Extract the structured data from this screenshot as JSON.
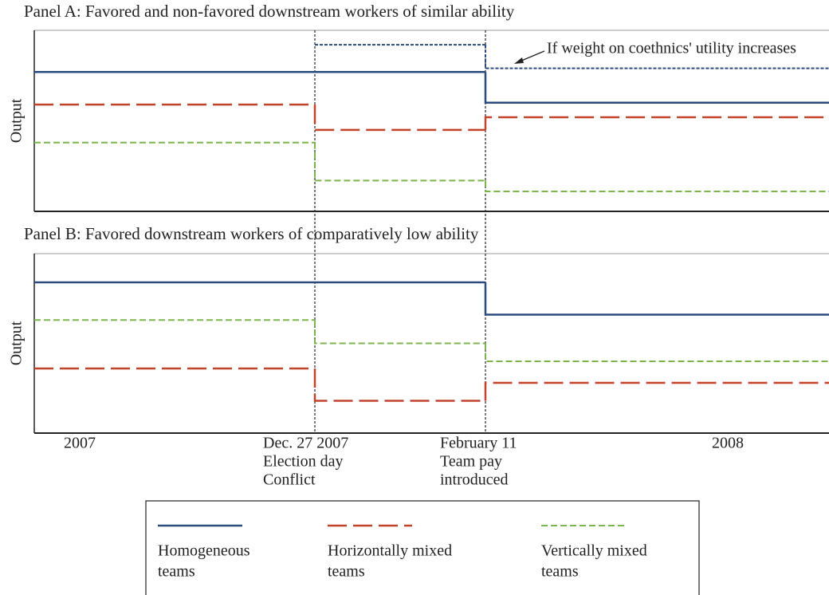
{
  "chart_data": [
    {
      "type": "step",
      "title": "Panel A: Favored and non-favored downstream workers of similar ability",
      "y_label": "Output",
      "ylim": [
        0,
        100
      ],
      "annotation": "If weight on coethnics' utility increases",
      "series": [
        {
          "name": "Homogeneous teams",
          "color": "#2b4a7e",
          "dash": "solid",
          "values": [
            77,
            77,
            60
          ]
        },
        {
          "name": "Horizontally mixed teams",
          "color": "#c0432a",
          "dash": "long",
          "values": [
            59,
            45,
            52
          ]
        },
        {
          "name": "Vertically mixed teams",
          "color": "#7bb54c",
          "dash": "short",
          "values": [
            38,
            17,
            11
          ]
        },
        {
          "color": "#2b4a7e",
          "dash": "dot",
          "values": [
            null,
            92,
            79
          ]
        }
      ]
    },
    {
      "type": "step",
      "title": "Panel B: Favored downstream workers of comparatively low ability",
      "y_label": "Output",
      "ylim": [
        0,
        100
      ],
      "x_labels": [
        [
          "2007"
        ],
        [
          "Dec. 27 2007",
          "Election day",
          "Conflict"
        ],
        [
          "February 11",
          "Team pay",
          "introduced"
        ],
        [
          "2008"
        ]
      ],
      "series": [
        {
          "name": "Homogeneous teams",
          "color": "#2b4a7e",
          "dash": "solid",
          "values": [
            84,
            84,
            66
          ]
        },
        {
          "name": "Horizontally mixed teams",
          "color": "#c0432a",
          "dash": "long",
          "values": [
            36,
            18,
            28
          ]
        },
        {
          "name": "Vertically mixed teams",
          "color": "#7bb54c",
          "dash": "short",
          "values": [
            63,
            50,
            40
          ]
        }
      ]
    }
  ]
}
